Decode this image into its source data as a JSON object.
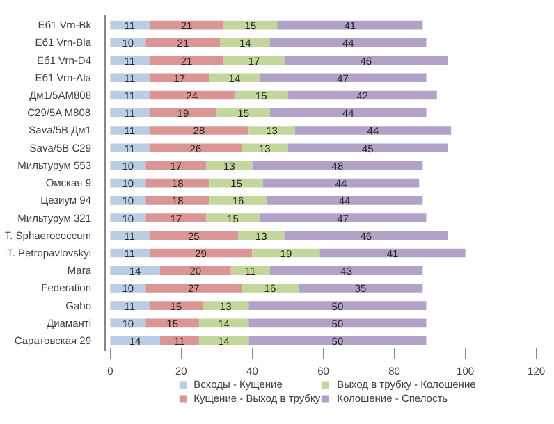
{
  "chart_data": {
    "type": "bar",
    "orientation": "horizontal",
    "stacked": true,
    "data_labels": true,
    "grid": false,
    "legend": "bottom",
    "categories": [
      "Еб1 Vrn-Bk",
      "Еб1 Vrn-Bla",
      "Еб1 Vrn-D4",
      "Еб1 Vrn-Ala",
      "Дм1/5AM808",
      "C29/5A M808",
      "Sava/5B Дм1",
      "Sava/5B C29",
      "Мильтурум 553",
      "Омская 9",
      "Цезиум 94",
      "Мильтурум 321",
      "T. Sphaerococcum",
      "T. Petropavlovskyi",
      "Mara",
      "Federation",
      "Gabo",
      "Диаманті",
      "Саратовская 29"
    ],
    "xlim": [
      0,
      120
    ],
    "xticks": [
      0,
      20,
      40,
      60,
      80,
      100,
      120
    ],
    "series": [
      {
        "name": "Всходы - Кущение",
        "color": "#b9cde5",
        "values": [
          11,
          10,
          11,
          11,
          11,
          11,
          11,
          11,
          10,
          10,
          10,
          10,
          11,
          11,
          14,
          10,
          11,
          10,
          14
        ]
      },
      {
        "name": "Кущение - Выход в трубку",
        "color": "#d99694",
        "values": [
          21,
          21,
          21,
          17,
          24,
          19,
          28,
          26,
          17,
          18,
          18,
          17,
          25,
          29,
          20,
          27,
          15,
          15,
          11
        ]
      },
      {
        "name": "Выход в трубку - Колошение",
        "color": "#c3d69b",
        "values": [
          15,
          14,
          17,
          14,
          15,
          15,
          13,
          13,
          13,
          15,
          16,
          15,
          13,
          19,
          11,
          16,
          13,
          14,
          14
        ]
      },
      {
        "name": "Колошение - Спелость",
        "color": "#b3a2c7",
        "values": [
          41,
          44,
          46,
          47,
          42,
          44,
          44,
          45,
          48,
          44,
          44,
          47,
          46,
          41,
          43,
          35,
          50,
          50,
          50
        ]
      }
    ]
  }
}
